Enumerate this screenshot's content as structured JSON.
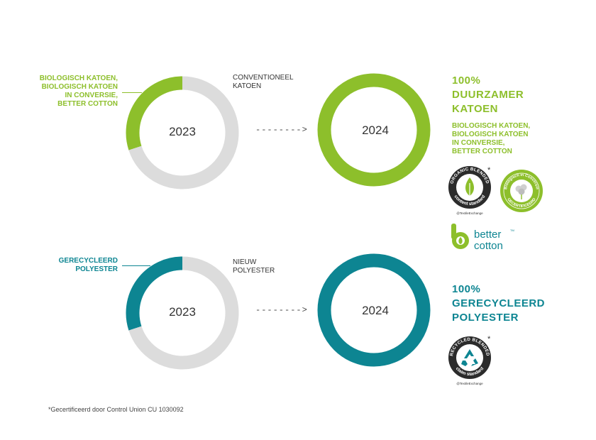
{
  "colors": {
    "green": "#8dbf2b",
    "teal": "#0d8592",
    "grey": "#dcdcdc"
  },
  "chart_data": [
    {
      "type": "pie",
      "year": "2023",
      "categories": [
        "BIOLOGISCH KATOEN, BIOLOGISCH KATOEN IN CONVERSIE, BETTER COTTON",
        "CONVENTIONEEL KATOEN"
      ],
      "values": [
        30,
        70
      ],
      "colors": [
        "#8dbf2b",
        "#dcdcdc"
      ]
    },
    {
      "type": "pie",
      "year": "2024",
      "categories": [
        "BIOLOGISCH KATOEN, BIOLOGISCH KATOEN IN CONVERSIE, BETTER COTTON"
      ],
      "values": [
        100
      ],
      "colors": [
        "#8dbf2b"
      ]
    },
    {
      "type": "pie",
      "year": "2023",
      "categories": [
        "GERECYCLEERD POLYESTER",
        "NIEUW POLYESTER"
      ],
      "values": [
        30,
        70
      ],
      "colors": [
        "#0d8592",
        "#dcdcdc"
      ]
    },
    {
      "type": "pie",
      "year": "2024",
      "categories": [
        "GERECYCLEERD POLYESTER"
      ],
      "values": [
        100
      ],
      "colors": [
        "#0d8592"
      ]
    }
  ],
  "cotton": {
    "left_label": [
      "BIOLOGISCH KATOEN,",
      "BIOLOGISCH KATOEN",
      "IN CONVERSIE,",
      "BETTER COTTON"
    ],
    "right_label": [
      "CONVENTIONEEL",
      "KATOEN"
    ],
    "headline": [
      "100%",
      "DUURZAMER",
      "KATOEN"
    ],
    "sublabel": [
      "BIOLOGISCH KATOEN,",
      "BIOLOGISCH KATOEN",
      "IN CONVERSIE,",
      "BETTER COTTON"
    ],
    "year_before": "2023",
    "year_after": "2024",
    "arrow": "-------->"
  },
  "polyester": {
    "left_label": [
      "GERECYCLEERD",
      "POLYESTER"
    ],
    "right_label": [
      "NIEUW",
      "POLYESTER"
    ],
    "headline": [
      "100%",
      "GERECYCLEERD",
      "POLYESTER"
    ],
    "year_before": "2023",
    "year_after": "2024",
    "arrow": "-------->"
  },
  "logos": {
    "ocs_top": "ORGANIC BLENDED",
    "ocs_bottom": "content standard",
    "ocs_tag": "@TextileExchange",
    "conversion_top": "Biologisch in Conversie",
    "conversion_bottom": "GECERTIFICEERD",
    "better_cotton_1": "better",
    "better_cotton_2": "cotton",
    "better_cotton_tm": "TM",
    "rcs_top": "RECYCLED BLENDED",
    "rcs_bottom": "claim standard",
    "rcs_tag": "@TextileExchange",
    "asterisk": "*"
  },
  "footnote": "*Gecertificeerd door Control Union CU 1030092"
}
